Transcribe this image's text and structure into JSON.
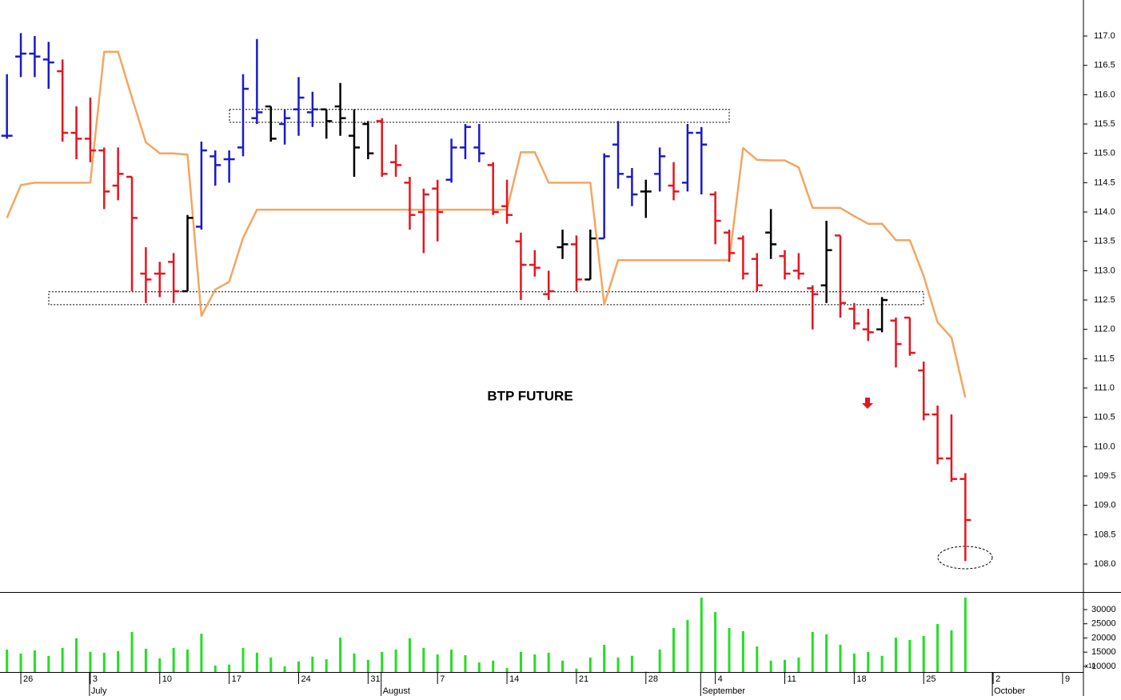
{
  "chart_data": {
    "type": "ohlc",
    "title": "BTP FUTURE",
    "categories": [
      null,
      "26",
      null,
      null,
      null,
      null,
      "3",
      null,
      null,
      null,
      null,
      "10",
      null,
      null,
      null,
      null,
      "17",
      null,
      null,
      null,
      null,
      "24",
      null,
      null,
      null,
      null,
      "31",
      null,
      null,
      null,
      null,
      "7",
      null,
      null,
      null,
      null,
      "14",
      null,
      null,
      null,
      null,
      "21",
      null,
      null,
      null,
      null,
      "28",
      null,
      null,
      null,
      null,
      "4",
      null,
      null,
      null,
      null,
      "11",
      null,
      null,
      null,
      null,
      "18",
      null,
      null,
      null,
      null,
      "25",
      null,
      null,
      null,
      null,
      "2",
      null,
      null,
      null,
      null,
      "9",
      null
    ],
    "month_labels": [
      null,
      null,
      null,
      null,
      null,
      null,
      "July",
      null,
      null,
      null,
      null,
      null,
      null,
      null,
      null,
      null,
      null,
      null,
      null,
      null,
      null,
      null,
      null,
      null,
      null,
      null,
      null,
      "August",
      null,
      null,
      null,
      null,
      null,
      null,
      null,
      null,
      null,
      null,
      null,
      null,
      null,
      null,
      null,
      null,
      null,
      null,
      null,
      null,
      null,
      null,
      "September",
      null,
      null,
      null,
      null,
      null,
      null,
      null,
      null,
      null,
      null,
      null,
      null,
      null,
      null,
      null,
      null,
      null,
      null,
      null,
      null,
      "October",
      null,
      null,
      null,
      null,
      null,
      null
    ],
    "open": [
      115.3,
      116.65,
      116.7,
      116.6,
      116.4,
      115.35,
      115.25,
      115.05,
      114.45,
      114.6,
      112.95,
      112.95,
      113.15,
      112.65,
      113.75,
      114.95,
      114.9,
      115.1,
      115.6,
      115.8,
      115.5,
      115.75,
      115.7,
      115.75,
      115.8,
      115.3,
      115.5,
      115.55,
      114.85,
      114.5,
      114.0,
      114.4,
      114.55,
      115.1,
      115.1,
      114.8,
      114.1,
      113.5,
      113.1,
      112.6,
      113.4,
      113.45,
      112.85,
      113.55,
      115.15,
      114.6,
      114.35,
      114.65,
      114.45,
      114.5,
      115.35,
      114.3,
      113.65,
      113.55,
      113.2,
      113.65,
      113.25,
      113.0,
      112.7,
      112.75,
      113.6,
      112.35,
      112.0,
      112.0,
      112.15,
      112.2,
      111.3,
      110.55,
      109.8,
      109.45,
      null,
      null,
      null,
      null,
      null,
      null,
      null,
      null
    ],
    "high": [
      116.35,
      117.05,
      117.0,
      116.9,
      116.6,
      115.8,
      115.95,
      115.1,
      115.1,
      114.6,
      113.4,
      113.15,
      113.3,
      113.95,
      115.2,
      115.05,
      115.05,
      116.35,
      116.95,
      115.8,
      115.75,
      116.3,
      116.05,
      115.75,
      116.2,
      115.75,
      115.55,
      115.6,
      115.15,
      114.6,
      114.4,
      114.55,
      115.25,
      115.5,
      115.5,
      114.85,
      114.55,
      113.65,
      113.35,
      113.0,
      113.7,
      113.6,
      113.7,
      115.0,
      115.55,
      114.75,
      114.55,
      115.1,
      114.85,
      115.5,
      115.45,
      114.35,
      113.7,
      113.6,
      113.3,
      114.05,
      113.35,
      113.3,
      112.75,
      113.85,
      113.6,
      112.45,
      112.35,
      112.55,
      112.2,
      112.2,
      111.45,
      110.7,
      110.55,
      109.55,
      null,
      null,
      null,
      null,
      null,
      null,
      null,
      null
    ],
    "low": [
      115.25,
      116.3,
      116.3,
      116.1,
      115.2,
      114.9,
      114.85,
      114.05,
      114.2,
      112.65,
      112.45,
      112.55,
      112.45,
      112.65,
      113.7,
      114.45,
      114.5,
      114.95,
      115.5,
      115.2,
      115.15,
      115.3,
      115.45,
      115.25,
      115.3,
      114.6,
      114.9,
      114.6,
      114.6,
      113.7,
      113.3,
      113.5,
      114.5,
      114.9,
      114.85,
      113.95,
      113.8,
      112.5,
      112.9,
      112.5,
      113.2,
      112.65,
      112.85,
      113.55,
      114.4,
      114.1,
      113.9,
      114.35,
      114.2,
      114.35,
      114.3,
      113.45,
      113.15,
      112.85,
      112.65,
      113.2,
      112.85,
      112.85,
      112.0,
      112.45,
      112.2,
      112.0,
      111.8,
      111.95,
      111.35,
      111.55,
      110.45,
      109.7,
      109.4,
      108.05,
      null,
      null,
      null,
      null,
      null,
      null,
      null,
      null
    ],
    "close": [
      115.3,
      116.7,
      116.65,
      116.55,
      115.35,
      115.25,
      115.05,
      114.35,
      114.65,
      113.9,
      112.85,
      112.95,
      112.65,
      113.9,
      115.05,
      114.8,
      114.9,
      116.1,
      115.7,
      115.25,
      115.6,
      115.95,
      115.75,
      115.55,
      115.6,
      115.1,
      115.0,
      114.65,
      114.8,
      113.95,
      114.3,
      114.0,
      115.1,
      115.45,
      115.0,
      114.0,
      113.95,
      113.1,
      113.05,
      112.65,
      113.45,
      112.85,
      113.55,
      114.95,
      114.65,
      114.3,
      114.35,
      114.95,
      114.35,
      115.35,
      115.15,
      113.85,
      113.3,
      112.95,
      112.75,
      113.45,
      112.95,
      112.95,
      112.6,
      113.35,
      112.45,
      112.1,
      111.95,
      112.5,
      111.75,
      111.6,
      110.55,
      109.8,
      109.45,
      108.75,
      null,
      null,
      null,
      null,
      null,
      null,
      null,
      null
    ],
    "bar_colors": [
      "#1a1acc",
      "#1a1acc",
      "#1a1acc",
      "#1a1acc",
      "#e8141e",
      "#e8141e",
      "#e8141e",
      "#e8141e",
      "#e8141e",
      "#e8141e",
      "#e8141e",
      "#e8141e",
      "#e8141e",
      "#000000",
      "#1a1acc",
      "#1a1acc",
      "#1a1acc",
      "#1a1acc",
      "#1a1acc",
      "#000000",
      "#1a1acc",
      "#1a1acc",
      "#1a1acc",
      "#000000",
      "#000000",
      "#000000",
      "#000000",
      "#e8141e",
      "#e8141e",
      "#e8141e",
      "#e8141e",
      "#e8141e",
      "#1a1acc",
      "#1a1acc",
      "#1a1acc",
      "#e8141e",
      "#e8141e",
      "#e8141e",
      "#e8141e",
      "#e8141e",
      "#000000",
      "#e8141e",
      "#000000",
      "#1a1acc",
      "#1a1acc",
      "#1a1acc",
      "#000000",
      "#1a1acc",
      "#e8141e",
      "#1a1acc",
      "#1a1acc",
      "#e8141e",
      "#e8141e",
      "#e8141e",
      "#e8141e",
      "#000000",
      "#e8141e",
      "#e8141e",
      "#e8141e",
      "#000000",
      "#e8141e",
      "#e8141e",
      "#e8141e",
      "#000000",
      "#e8141e",
      "#e8141e",
      "#e8141e",
      "#e8141e",
      "#e8141e",
      "#e8141e",
      null,
      null,
      null,
      null,
      null,
      null,
      null,
      null
    ],
    "line": {
      "color": "#f5a560",
      "values": [
        113.9,
        114.46,
        114.5,
        114.5,
        114.5,
        114.5,
        114.5,
        116.73,
        116.73,
        115.95,
        115.19,
        115.0,
        115.0,
        114.98,
        112.23,
        112.68,
        112.81,
        113.56,
        114.04,
        114.04,
        114.04,
        114.04,
        114.04,
        114.04,
        114.04,
        114.04,
        114.04,
        114.04,
        114.04,
        114.04,
        114.04,
        114.04,
        114.04,
        114.04,
        114.04,
        114.04,
        114.04,
        115.02,
        115.02,
        114.5,
        114.5,
        114.5,
        114.5,
        112.42,
        113.18,
        113.18,
        113.18,
        113.18,
        113.18,
        113.18,
        113.18,
        113.18,
        113.18,
        115.09,
        114.89,
        114.88,
        114.88,
        114.76,
        114.07,
        114.07,
        114.07,
        113.93,
        113.8,
        113.8,
        113.52,
        113.52,
        112.91,
        112.12,
        111.86,
        110.84,
        null,
        null,
        null,
        null,
        null,
        null,
        null,
        null
      ]
    },
    "zones": [
      {
        "low": 115.53,
        "high": 115.75
      },
      {
        "low": 112.42,
        "high": 112.64
      }
    ],
    "ylim": [
      107.523,
      117.614
    ],
    "yticks": [
      {
        "value": 108,
        "label": "108.0"
      },
      {
        "value": 108.5,
        "label": "108.5"
      },
      {
        "value": 109,
        "label": "109.0"
      },
      {
        "value": 109.5,
        "label": "109.5"
      },
      {
        "value": 110,
        "label": "110.0"
      },
      {
        "value": 110.5,
        "label": "110.5"
      },
      {
        "value": 111,
        "label": "111.0"
      },
      {
        "value": 111.5,
        "label": "111.5"
      },
      {
        "value": 112,
        "label": "112.0"
      },
      {
        "value": 112.5,
        "label": "112.5"
      },
      {
        "value": 113,
        "label": "113.0"
      },
      {
        "value": 113.5,
        "label": "113.5"
      },
      {
        "value": 114,
        "label": "114.0"
      },
      {
        "value": 114.5,
        "label": "114.5"
      },
      {
        "value": 115,
        "label": "115.0"
      },
      {
        "value": 115.5,
        "label": "115.5"
      },
      {
        "value": 116,
        "label": "116.0"
      },
      {
        "value": 116.5,
        "label": "116.5"
      },
      {
        "value": 117,
        "label": "117.0"
      }
    ],
    "volume": {
      "type": "bar",
      "color": "#22e022",
      "unit_label": "x10",
      "values": [
        15900,
        14500,
        15600,
        13700,
        16500,
        19900,
        15100,
        14800,
        15400,
        22100,
        16200,
        12800,
        16500,
        15900,
        21500,
        10300,
        10600,
        16500,
        14800,
        13100,
        10000,
        11700,
        13400,
        12500,
        20100,
        14500,
        12300,
        15100,
        15900,
        19900,
        16500,
        14200,
        15900,
        13900,
        11400,
        12000,
        9400,
        15100,
        14200,
        14800,
        12000,
        9200,
        13100,
        17600,
        13100,
        13700,
        8100,
        15900,
        23500,
        26300,
        34200,
        29200,
        23500,
        22400,
        17000,
        12000,
        12300,
        13100,
        22100,
        21300,
        17600,
        14500,
        15100,
        13700,
        20100,
        19300,
        20700,
        24900,
        22700,
        34200,
        null,
        null,
        null,
        null,
        null,
        null,
        null,
        null
      ],
      "ylim": [
        8000,
        36200
      ],
      "yticks": [
        10000,
        15000,
        20000,
        25000,
        30000
      ]
    }
  }
}
